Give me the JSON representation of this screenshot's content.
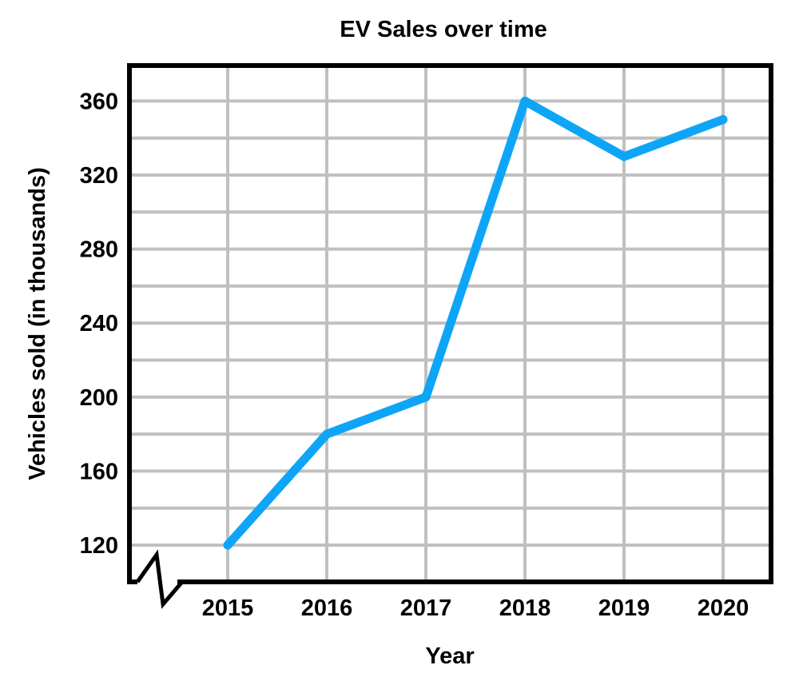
{
  "chart_data": {
    "type": "line",
    "title": "EV Sales over time",
    "xlabel": "Year",
    "ylabel": "Vehicles sold (in thousands)",
    "categories": [
      "2015",
      "2016",
      "2017",
      "2018",
      "2019",
      "2020"
    ],
    "series": [
      {
        "values": [
          120,
          180,
          200,
          360,
          330,
          350
        ]
      }
    ],
    "yticks": [
      "120",
      "160",
      "200",
      "240",
      "280",
      "320",
      "360"
    ],
    "ylim": [
      100,
      380
    ],
    "y_axis_break": true,
    "grid": true,
    "colors": {
      "line": "#0ea5f7",
      "grid": "#c0c0c0",
      "frame": "#000000"
    }
  }
}
